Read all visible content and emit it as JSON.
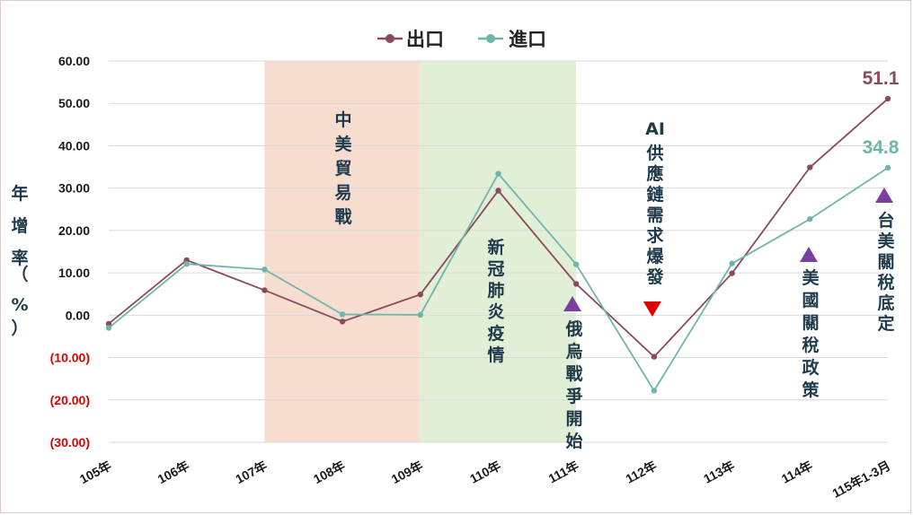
{
  "chart_data": {
    "type": "line",
    "categories": [
      "105年",
      "106年",
      "107年",
      "108年",
      "109年",
      "110年",
      "111年",
      "112年",
      "113年",
      "114年",
      "115年1-3月"
    ],
    "series": [
      {
        "name": "出口",
        "color": "#8b4a5a",
        "values": [
          -2.0,
          13.0,
          5.9,
          -1.5,
          4.9,
          29.4,
          7.4,
          -9.8,
          9.9,
          34.9,
          51.1
        ]
      },
      {
        "name": "進口",
        "color": "#6fb5ad",
        "values": [
          -3.0,
          12.1,
          10.8,
          0.2,
          0.1,
          33.4,
          12.0,
          -17.8,
          12.2,
          22.7,
          34.8
        ]
      }
    ],
    "ylim": [
      -30,
      60
    ],
    "yticks": [
      "60.00",
      "50.00",
      "40.00",
      "30.00",
      "20.00",
      "10.00",
      "0.00",
      "(10.00)",
      "(20.00)",
      "(30.00)"
    ],
    "ylabel": "年增率（%）",
    "negative_tick_color": "#e00000",
    "value_labels": [
      {
        "series": "出口",
        "text": "51.1"
      },
      {
        "series": "進口",
        "text": "34.8"
      }
    ],
    "shaded_regions": [
      {
        "label": "中美貿易戰",
        "from": "107年",
        "to": "109年",
        "color": "#f7dcd0"
      },
      {
        "label": "新冠肺炎疫情",
        "from": "109年",
        "to": "111年",
        "color": "#e0efd6"
      }
    ],
    "annotations": [
      {
        "text": "AI供應鏈需求爆發",
        "at": "112年",
        "marker": "down-triangle",
        "color": "#e00000"
      },
      {
        "text": "俄烏戰爭開始",
        "at": "111年",
        "marker": "up-triangle",
        "color": "#7a3fa0"
      },
      {
        "text": "美國關稅政策",
        "at": "114年",
        "marker": "up-triangle",
        "color": "#7a3fa0"
      },
      {
        "text": "台美關稅底定",
        "at": "115年1-3月",
        "marker": "up-triangle",
        "color": "#7a3fa0"
      }
    ],
    "legend_position": "top-center",
    "grid": "horizontal"
  }
}
